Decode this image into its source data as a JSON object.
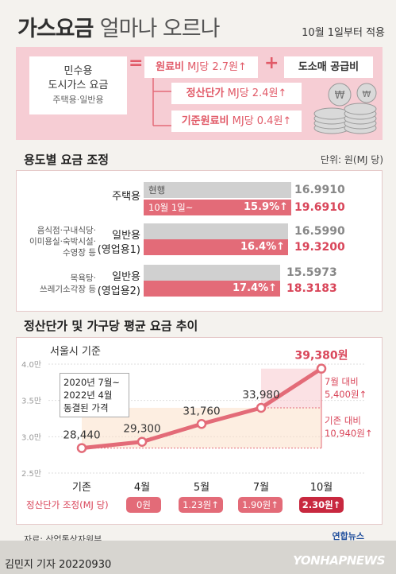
{
  "header": {
    "title_bold": "가스요금",
    "title_rest": "얼마나 오르나",
    "effective": "10월 1일부터 적용"
  },
  "formula": {
    "left_line1": "민수용",
    "left_line2": "도시가스 요금",
    "left_line3": "주택용·일반용",
    "equals": "=",
    "plus": "+",
    "raw_cost_label": "원료비",
    "raw_cost_value": "MJ당 2.7원↑",
    "supply_cost": "도소매 공급비",
    "settle_label": "정산단가",
    "settle_value": "MJ당 2.4원↑",
    "base_label": "기준원료비",
    "base_value": "MJ당 0.4원↑",
    "coin_glyph": "₩"
  },
  "section1": {
    "title": "용도별 요금 조정",
    "unit": "단위: 원(MJ 당)",
    "legend_current": "현행",
    "legend_new": "10월 1일~",
    "rows": [
      {
        "label": "주택용",
        "sub": "",
        "current": "16.9910",
        "pct": "15.9%↑",
        "new": "19.6910",
        "current_num": 16.991,
        "new_num": 19.691
      },
      {
        "label": "일반용",
        "label2": "(영업용1)",
        "sub": "음식점·구내식당·\n이미용실·숙박시설·\n수영장 등",
        "current": "16.5990",
        "pct": "16.4%↑",
        "new": "19.3200",
        "current_num": 16.599,
        "new_num": 19.32
      },
      {
        "label": "일반용",
        "label2": "(영업용2)",
        "sub": "목욕탕·\n쓰레기소각장 등",
        "current": "15.5973",
        "pct": "17.4%↑",
        "new": "18.3183",
        "current_num": 15.5973,
        "new_num": 18.3183
      }
    ]
  },
  "section2": {
    "title": "정산단가 및 가구당 평균 요금 추이",
    "subtitle": "서울시 기준",
    "note": "2020년 7월~\n2022년 4월\n동결된 가격",
    "right_note1": "7월 대비\n5,400원↑",
    "right_note2": "기존 대비\n10,940원↑",
    "pill_label": "정산단가 조정(MJ 당)",
    "pills": [
      "0원",
      "1.23원↑",
      "1.90원↑",
      "2.30원↑"
    ]
  },
  "chart_data": {
    "type": "line",
    "categories": [
      "기존",
      "4월",
      "5월",
      "7월",
      "10월"
    ],
    "series": [
      {
        "values": [
          28440,
          29300,
          31760,
          33980,
          39380
        ]
      }
    ],
    "data_labels": [
      "28,440",
      "29,300",
      "31,760",
      "33,980",
      "39,380원"
    ],
    "ylim": [
      2.5,
      4.0
    ],
    "yticks": [
      "2.5만",
      "3.0만",
      "3.5만",
      "4.0만"
    ],
    "grid": true
  },
  "footer": {
    "source": "자료: 산업통상자원부",
    "byline": "김민지 기자  20220930",
    "logo": "YONHAPNEWS",
    "logo_small": "연합뉴스"
  },
  "colors": {
    "pink": "#e36b78",
    "pink_light": "#f6cdd4",
    "dark_pink": "#c8283f",
    "gray_bar": "#d0d0d0"
  }
}
